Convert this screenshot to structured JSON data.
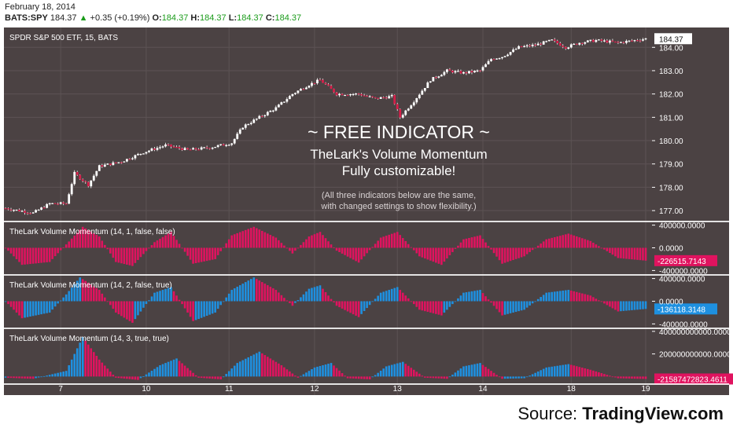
{
  "header": {
    "date": "February 18, 2014",
    "symbol": "BATS:SPY",
    "last": "184.37",
    "change": "+0.35 (+0.19%)",
    "open_label": "O:",
    "open": "184.37",
    "high_label": "H:",
    "high": "184.37",
    "low_label": "L:",
    "low": "184.37",
    "close_label": "C:",
    "close": "184.37"
  },
  "overlay": {
    "headline": "~ FREE INDICATOR ~",
    "line1": "TheLark's Volume Momentum",
    "line2": "Fully customizable!",
    "note1": "(All three indicators below are the same,",
    "note2": "with changed settings to show flexibility.)"
  },
  "source": {
    "prefix": "Source: ",
    "brand": "TradingView.com"
  },
  "colors": {
    "background": "#4b4243",
    "up_candle": "#ffffff",
    "down_candle": "#d51f4a",
    "pink": "#e0135f",
    "blue": "#1e90e0",
    "axis_text": "#ffffff",
    "grid": "#5c5354"
  },
  "chart_data": [
    {
      "type": "candlestick",
      "title": "SPDR S&P 500 ETF, 15, BATS",
      "ylim": [
        176.6,
        184.75
      ],
      "yticks": [
        "177.00",
        "178.00",
        "179.00",
        "180.00",
        "181.00",
        "182.00",
        "183.00",
        "184.00"
      ],
      "last_label": "184.37",
      "x_ticks": [
        "7",
        "10",
        "11",
        "12",
        "13",
        "14",
        "18",
        "19"
      ],
      "close_path": [
        [
          0,
          177.1
        ],
        [
          10,
          176.9
        ],
        [
          16,
          177.3
        ],
        [
          22,
          177.3
        ],
        [
          25,
          178.6
        ],
        [
          30,
          178.1
        ],
        [
          34,
          178.9
        ],
        [
          42,
          179.1
        ],
        [
          50,
          179.5
        ],
        [
          58,
          179.8
        ],
        [
          66,
          179.6
        ],
        [
          74,
          179.7
        ],
        [
          82,
          179.9
        ],
        [
          86,
          180.6
        ],
        [
          92,
          181.0
        ],
        [
          98,
          181.4
        ],
        [
          104,
          182.0
        ],
        [
          110,
          182.4
        ],
        [
          114,
          182.6
        ],
        [
          120,
          182.0
        ],
        [
          128,
          182.0
        ],
        [
          134,
          181.8
        ],
        [
          140,
          181.9
        ],
        [
          143,
          181.0
        ],
        [
          148,
          181.7
        ],
        [
          154,
          182.6
        ],
        [
          160,
          183.0
        ],
        [
          166,
          182.9
        ],
        [
          172,
          183.0
        ],
        [
          176,
          183.5
        ],
        [
          180,
          183.6
        ],
        [
          186,
          184.0
        ],
        [
          192,
          184.1
        ],
        [
          198,
          184.3
        ],
        [
          203,
          184.0
        ],
        [
          208,
          184.2
        ],
        [
          214,
          184.3
        ],
        [
          222,
          184.2
        ],
        [
          232,
          184.37
        ]
      ]
    },
    {
      "type": "histogram",
      "title": "TheLark Volume Momentum (14, 1, false, false)",
      "yticks": [
        "400000.0000",
        "0.0000",
        "-400000.0000"
      ],
      "ylim": [
        -450000,
        450000
      ],
      "last_value": "-226515.7143",
      "coloring": "pink",
      "waves": [
        [
          0,
          0
        ],
        [
          6,
          -300000
        ],
        [
          16,
          -250000
        ],
        [
          22,
          60000
        ],
        [
          28,
          370000
        ],
        [
          34,
          200000
        ],
        [
          40,
          -250000
        ],
        [
          46,
          -320000
        ],
        [
          54,
          100000
        ],
        [
          60,
          280000
        ],
        [
          68,
          -280000
        ],
        [
          76,
          -200000
        ],
        [
          82,
          220000
        ],
        [
          90,
          370000
        ],
        [
          98,
          180000
        ],
        [
          104,
          -100000
        ],
        [
          110,
          200000
        ],
        [
          114,
          280000
        ],
        [
          120,
          -50000
        ],
        [
          128,
          -260000
        ],
        [
          136,
          180000
        ],
        [
          142,
          280000
        ],
        [
          150,
          -150000
        ],
        [
          158,
          -300000
        ],
        [
          166,
          150000
        ],
        [
          172,
          220000
        ],
        [
          180,
          -280000
        ],
        [
          188,
          -150000
        ],
        [
          196,
          150000
        ],
        [
          204,
          250000
        ],
        [
          212,
          120000
        ],
        [
          222,
          -180000
        ],
        [
          232,
          -226515
        ]
      ]
    },
    {
      "type": "histogram",
      "title": "TheLark Volume Momentum (14, 2, false, true)",
      "yticks": [
        "400000.0000",
        "0.0000",
        "-400000.0000"
      ],
      "ylim": [
        -450000,
        450000
      ],
      "last_value": "-136118.3148",
      "coloring": "trend",
      "waves": [
        [
          0,
          0
        ],
        [
          6,
          -300000
        ],
        [
          16,
          -200000
        ],
        [
          22,
          120000
        ],
        [
          27,
          420000
        ],
        [
          34,
          200000
        ],
        [
          40,
          -200000
        ],
        [
          46,
          -380000
        ],
        [
          54,
          150000
        ],
        [
          60,
          250000
        ],
        [
          68,
          -350000
        ],
        [
          76,
          -200000
        ],
        [
          82,
          200000
        ],
        [
          90,
          420000
        ],
        [
          98,
          200000
        ],
        [
          104,
          -80000
        ],
        [
          110,
          220000
        ],
        [
          114,
          280000
        ],
        [
          120,
          -80000
        ],
        [
          128,
          -280000
        ],
        [
          136,
          150000
        ],
        [
          142,
          250000
        ],
        [
          150,
          -150000
        ],
        [
          158,
          -250000
        ],
        [
          166,
          150000
        ],
        [
          172,
          200000
        ],
        [
          180,
          -250000
        ],
        [
          188,
          -150000
        ],
        [
          196,
          150000
        ],
        [
          204,
          200000
        ],
        [
          212,
          100000
        ],
        [
          222,
          -180000
        ],
        [
          232,
          -136118
        ]
      ]
    },
    {
      "type": "histogram",
      "title": "TheLark Volume Momentum (14, 3, true, true)",
      "yticks": [
        "400000000000.0000",
        "200000000000.0000"
      ],
      "ylim": [
        -60000000000,
        420000000000
      ],
      "last_value": "-21587472823.4611",
      "coloring": "trend",
      "waves": [
        [
          0,
          -10000000000
        ],
        [
          10,
          -20000000000
        ],
        [
          22,
          50000000000
        ],
        [
          28,
          350000000000
        ],
        [
          34,
          150000000000
        ],
        [
          40,
          -10000000000
        ],
        [
          48,
          -30000000000
        ],
        [
          56,
          100000000000
        ],
        [
          62,
          160000000000
        ],
        [
          70,
          -10000000000
        ],
        [
          78,
          -25000000000
        ],
        [
          84,
          120000000000
        ],
        [
          92,
          220000000000
        ],
        [
          100,
          100000000000
        ],
        [
          106,
          -10000000000
        ],
        [
          112,
          80000000000
        ],
        [
          118,
          120000000000
        ],
        [
          124,
          -15000000000
        ],
        [
          132,
          -25000000000
        ],
        [
          138,
          90000000000
        ],
        [
          144,
          130000000000
        ],
        [
          152,
          -10000000000
        ],
        [
          160,
          -20000000000
        ],
        [
          166,
          90000000000
        ],
        [
          172,
          120000000000
        ],
        [
          180,
          -20000000000
        ],
        [
          188,
          -15000000000
        ],
        [
          196,
          80000000000
        ],
        [
          204,
          110000000000
        ],
        [
          212,
          60000000000
        ],
        [
          222,
          -15000000000
        ],
        [
          232,
          -21587472823
        ]
      ]
    }
  ]
}
